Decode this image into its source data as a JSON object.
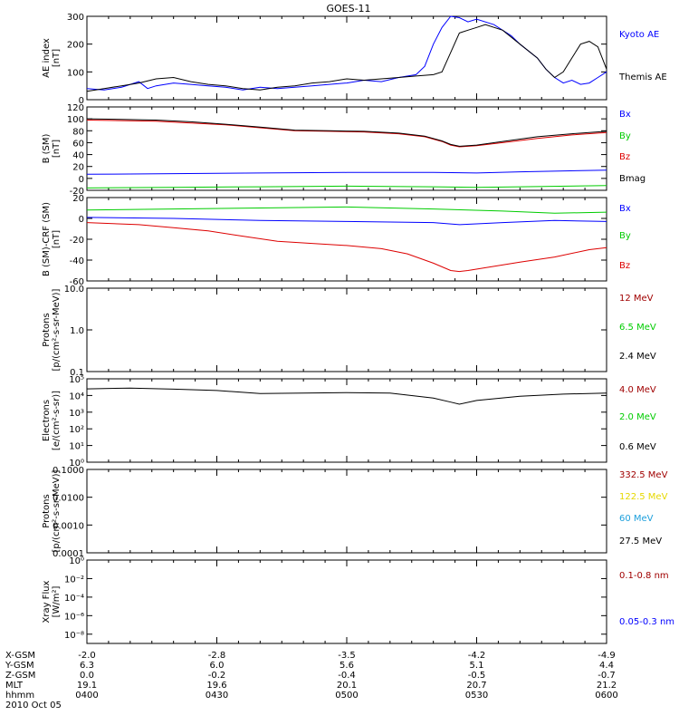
{
  "title": "GOES-11",
  "colors": {
    "black": "#000000",
    "blue": "#0000ff",
    "green": "#00cc00",
    "red": "#dd0000",
    "darkred": "#a00000",
    "yellow": "#e6d800",
    "cyan": "#1ea0dc"
  },
  "ephemeris": {
    "labels": [
      "X-GSM",
      "Y-GSM",
      "Z-GSM",
      "MLT",
      "hhmm"
    ],
    "date": "2010 Oct 05",
    "columns": [
      {
        "values": [
          "-2.0",
          "6.3",
          "0.0",
          "19.1",
          "0400"
        ]
      },
      {
        "values": [
          "-2.8",
          "6.0",
          "-0.2",
          "19.6",
          "0430"
        ]
      },
      {
        "values": [
          "-3.5",
          "5.6",
          "-0.4",
          "20.1",
          "0500"
        ]
      },
      {
        "values": [
          "-4.2",
          "5.1",
          "-0.5",
          "20.7",
          "0530"
        ]
      },
      {
        "values": [
          "-4.9",
          "4.4",
          "-0.7",
          "21.2",
          "0600"
        ]
      }
    ]
  },
  "chart_data": [
    {
      "type": "line",
      "id": "ae",
      "ylabel": "AE index\n[nT]",
      "ylim": [
        0,
        300
      ],
      "log": false,
      "yticks": [
        0,
        100,
        200,
        300
      ],
      "ytick_labels": [
        "0",
        "100",
        "200",
        "300"
      ],
      "x_range_minutes": [
        0,
        120
      ],
      "series": [
        {
          "name": "Kyoto AE",
          "color": "blue",
          "x": [
            0,
            4,
            8,
            12,
            14,
            16,
            20,
            24,
            28,
            32,
            36,
            40,
            44,
            48,
            52,
            56,
            60,
            64,
            68,
            72,
            76,
            78,
            80,
            82,
            84,
            86,
            88,
            90,
            94,
            98,
            100,
            104,
            106,
            108,
            110,
            112,
            114,
            116,
            118,
            120
          ],
          "y": [
            40,
            35,
            45,
            65,
            40,
            50,
            60,
            55,
            50,
            45,
            35,
            45,
            40,
            45,
            50,
            55,
            60,
            70,
            65,
            80,
            90,
            120,
            200,
            260,
            300,
            295,
            280,
            290,
            270,
            230,
            200,
            150,
            110,
            80,
            60,
            70,
            55,
            60,
            80,
            100
          ]
        },
        {
          "name": "Themis AE",
          "color": "black",
          "x": [
            0,
            4,
            8,
            12,
            16,
            20,
            24,
            28,
            32,
            36,
            40,
            44,
            48,
            52,
            56,
            60,
            64,
            68,
            72,
            76,
            80,
            82,
            84,
            86,
            88,
            90,
            92,
            96,
            100,
            104,
            106,
            108,
            110,
            112,
            114,
            116,
            118,
            120
          ],
          "y": [
            30,
            40,
            50,
            60,
            75,
            80,
            65,
            55,
            50,
            40,
            35,
            45,
            50,
            60,
            65,
            75,
            70,
            75,
            80,
            85,
            90,
            100,
            170,
            240,
            250,
            260,
            270,
            250,
            200,
            150,
            110,
            80,
            100,
            150,
            200,
            210,
            190,
            110
          ]
        }
      ]
    },
    {
      "type": "line",
      "id": "bsm",
      "ylabel": "B (SM)\n[nT]",
      "ylim": [
        -20,
        120
      ],
      "log": false,
      "yticks": [
        -20,
        0,
        20,
        40,
        60,
        80,
        100,
        120
      ],
      "ytick_labels": [
        "-20",
        "0",
        "20",
        "40",
        "60",
        "80",
        "100",
        "120"
      ],
      "x_range_minutes": [
        0,
        120
      ],
      "series": [
        {
          "name": "Bx",
          "color": "blue",
          "x": [
            0,
            20,
            40,
            60,
            80,
            90,
            100,
            120
          ],
          "y": [
            7,
            8,
            9,
            10,
            10,
            9,
            11,
            14
          ]
        },
        {
          "name": "By",
          "color": "green",
          "x": [
            0,
            20,
            40,
            60,
            80,
            90,
            100,
            120
          ],
          "y": [
            -16,
            -15,
            -14,
            -13,
            -14,
            -15,
            -14,
            -12
          ]
        },
        {
          "name": "Bz",
          "color": "red",
          "x": [
            0,
            8,
            16,
            24,
            32,
            40,
            48,
            56,
            64,
            72,
            78,
            82,
            84,
            86,
            90,
            96,
            104,
            112,
            120
          ],
          "y": [
            98,
            97,
            96,
            93,
            90,
            85,
            80,
            79,
            78,
            75,
            70,
            62,
            56,
            53,
            55,
            60,
            67,
            73,
            77
          ]
        },
        {
          "name": "Bmag",
          "color": "black",
          "x": [
            0,
            8,
            16,
            24,
            32,
            40,
            48,
            56,
            64,
            72,
            78,
            82,
            84,
            86,
            90,
            96,
            104,
            112,
            120
          ],
          "y": [
            100,
            99,
            98,
            95,
            91,
            86,
            81,
            80,
            79,
            76,
            71,
            63,
            57,
            54,
            56,
            62,
            70,
            75,
            79
          ]
        }
      ]
    },
    {
      "type": "line",
      "id": "bdiff",
      "ylabel": "B (SM)-CRF (SM)\n[nT]",
      "ylim": [
        -60,
        20
      ],
      "log": false,
      "yticks": [
        -60,
        -40,
        -20,
        0,
        20
      ],
      "ytick_labels": [
        "-60",
        "-40",
        "-20",
        "0",
        "20"
      ],
      "x_range_minutes": [
        0,
        120
      ],
      "series": [
        {
          "name": "Bx",
          "color": "blue",
          "x": [
            0,
            20,
            40,
            60,
            80,
            86,
            96,
            108,
            120
          ],
          "y": [
            1,
            0,
            -2,
            -3,
            -4,
            -6,
            -4,
            -2,
            -3
          ]
        },
        {
          "name": "By",
          "color": "green",
          "x": [
            0,
            20,
            40,
            60,
            80,
            96,
            108,
            120
          ],
          "y": [
            8,
            9,
            10,
            11,
            9,
            7,
            5,
            6
          ]
        },
        {
          "name": "Bz",
          "color": "red",
          "x": [
            0,
            6,
            12,
            20,
            28,
            36,
            44,
            52,
            60,
            68,
            74,
            80,
            84,
            86,
            88,
            94,
            100,
            108,
            116,
            120
          ],
          "y": [
            -4,
            -5,
            -6,
            -9,
            -12,
            -17,
            -22,
            -24,
            -26,
            -29,
            -34,
            -43,
            -50,
            -51,
            -50,
            -46,
            -42,
            -37,
            -30,
            -28
          ]
        }
      ]
    },
    {
      "type": "line",
      "id": "protons_hi",
      "ylabel": "Protons\n[p/(cm²-s-sr-MeV)]",
      "ylim": [
        0.1,
        10
      ],
      "log": true,
      "yticks": [
        0.1,
        1,
        10
      ],
      "ytick_labels": [
        "0.1",
        "1.0",
        "10.0"
      ],
      "x_range_minutes": [
        0,
        120
      ],
      "series": [
        {
          "name": "12 MeV",
          "color": "darkred",
          "x": [],
          "y": []
        },
        {
          "name": "6.5 MeV",
          "color": "green",
          "x": [],
          "y": []
        },
        {
          "name": "2.4 MeV",
          "color": "black",
          "x": [],
          "y": []
        }
      ]
    },
    {
      "type": "line",
      "id": "electrons",
      "ylabel": "Electrons\n[e/(cm²-s-sr)]",
      "ylim": [
        1,
        100000
      ],
      "log": true,
      "yticks": [
        1,
        10,
        100,
        1000,
        10000,
        100000
      ],
      "ytick_labels": [
        "10⁰",
        "10¹",
        "10²",
        "10³",
        "10⁴",
        "10⁵"
      ],
      "x_range_minutes": [
        0,
        120
      ],
      "series": [
        {
          "name": "4.0 MeV",
          "color": "darkred",
          "x": [],
          "y": []
        },
        {
          "name": "2.0 MeV",
          "color": "green",
          "x": [],
          "y": []
        },
        {
          "name": "0.6 MeV",
          "color": "black",
          "x": [
            0,
            10,
            20,
            30,
            40,
            50,
            60,
            70,
            80,
            84,
            86,
            90,
            100,
            110,
            120
          ],
          "y": [
            25000,
            28000,
            24000,
            20000,
            13000,
            14000,
            15000,
            14000,
            7000,
            4000,
            3000,
            5000,
            9000,
            12000,
            14000
          ]
        }
      ]
    },
    {
      "type": "line",
      "id": "protons_lo",
      "ylabel": "Protons\n[p/(cm²-s-sr-MeV)]",
      "ylim": [
        0.0001,
        0.1
      ],
      "log": true,
      "yticks": [
        0.0001,
        0.001,
        0.01,
        0.1
      ],
      "ytick_labels": [
        "0.0001",
        "0.0010",
        "0.0100",
        "0.1000"
      ],
      "x_range_minutes": [
        0,
        120
      ],
      "series": [
        {
          "name": "332.5 MeV",
          "color": "darkred",
          "x": [],
          "y": []
        },
        {
          "name": "122.5 MeV",
          "color": "yellow",
          "x": [],
          "y": []
        },
        {
          "name": "60 MeV",
          "color": "cyan",
          "x": [],
          "y": []
        },
        {
          "name": "27.5 MeV",
          "color": "black",
          "x": [],
          "y": []
        }
      ]
    },
    {
      "type": "line",
      "id": "xray",
      "ylabel": "Xray Flux\n[W/m²]",
      "ylim": [
        1e-09,
        1
      ],
      "log": true,
      "yticks": [
        1e-08,
        1e-06,
        0.0001,
        0.01,
        1
      ],
      "ytick_labels": [
        "10⁻⁸",
        "10⁻⁶",
        "10⁻⁴",
        "10⁻²",
        "10⁰"
      ],
      "x_range_minutes": [
        0,
        120
      ],
      "series": [
        {
          "name": "0.1-0.8 nm",
          "color": "darkred",
          "x": [],
          "y": []
        },
        {
          "name": "0.05-0.3 nm",
          "color": "blue",
          "x": [],
          "y": []
        }
      ]
    }
  ]
}
